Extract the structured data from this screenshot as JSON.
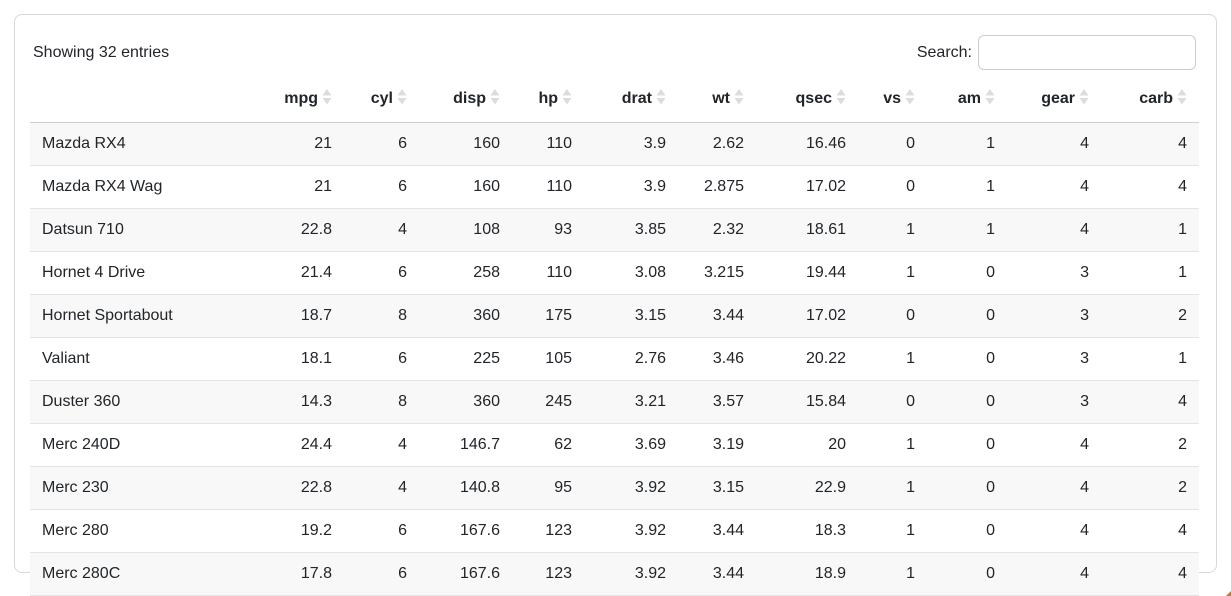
{
  "info_text": "Showing 32 entries",
  "search": {
    "label": "Search:",
    "value": "",
    "placeholder": ""
  },
  "table": {
    "columns": [
      {
        "label": "",
        "sortable": false
      },
      {
        "label": "mpg",
        "sortable": true
      },
      {
        "label": "cyl",
        "sortable": true
      },
      {
        "label": "disp",
        "sortable": true
      },
      {
        "label": "hp",
        "sortable": true
      },
      {
        "label": "drat",
        "sortable": true
      },
      {
        "label": "wt",
        "sortable": true
      },
      {
        "label": "qsec",
        "sortable": true
      },
      {
        "label": "vs",
        "sortable": true
      },
      {
        "label": "am",
        "sortable": true
      },
      {
        "label": "gear",
        "sortable": true
      },
      {
        "label": "carb",
        "sortable": true
      }
    ],
    "rows": [
      [
        "Mazda RX4",
        "21",
        "6",
        "160",
        "110",
        "3.9",
        "2.62",
        "16.46",
        "0",
        "1",
        "4",
        "4"
      ],
      [
        "Mazda RX4 Wag",
        "21",
        "6",
        "160",
        "110",
        "3.9",
        "2.875",
        "17.02",
        "0",
        "1",
        "4",
        "4"
      ],
      [
        "Datsun 710",
        "22.8",
        "4",
        "108",
        "93",
        "3.85",
        "2.32",
        "18.61",
        "1",
        "1",
        "4",
        "1"
      ],
      [
        "Hornet 4 Drive",
        "21.4",
        "6",
        "258",
        "110",
        "3.08",
        "3.215",
        "19.44",
        "1",
        "0",
        "3",
        "1"
      ],
      [
        "Hornet Sportabout",
        "18.7",
        "8",
        "360",
        "175",
        "3.15",
        "3.44",
        "17.02",
        "0",
        "0",
        "3",
        "2"
      ],
      [
        "Valiant",
        "18.1",
        "6",
        "225",
        "105",
        "2.76",
        "3.46",
        "20.22",
        "1",
        "0",
        "3",
        "1"
      ],
      [
        "Duster 360",
        "14.3",
        "8",
        "360",
        "245",
        "3.21",
        "3.57",
        "15.84",
        "0",
        "0",
        "3",
        "4"
      ],
      [
        "Merc 240D",
        "24.4",
        "4",
        "146.7",
        "62",
        "3.69",
        "3.19",
        "20",
        "1",
        "0",
        "4",
        "2"
      ],
      [
        "Merc 230",
        "22.8",
        "4",
        "140.8",
        "95",
        "3.92",
        "3.15",
        "22.9",
        "1",
        "0",
        "4",
        "2"
      ],
      [
        "Merc 280",
        "19.2",
        "6",
        "167.6",
        "123",
        "3.92",
        "3.44",
        "18.3",
        "1",
        "0",
        "4",
        "4"
      ],
      [
        "Merc 280C",
        "17.8",
        "6",
        "167.6",
        "123",
        "3.92",
        "3.44",
        "18.9",
        "1",
        "0",
        "4",
        "4"
      ]
    ]
  },
  "icons": {
    "sort": "sort-both-icon"
  },
  "colors": {
    "text": "#212529",
    "stripe": "#f8f8f8",
    "row_border": "#e4e4e4",
    "header_border": "#cfcfcf",
    "card_border": "#d8d8d8",
    "sort_icon": "#dcdcdc",
    "input_border": "#cccccc",
    "artifact": "#ad5c36"
  }
}
